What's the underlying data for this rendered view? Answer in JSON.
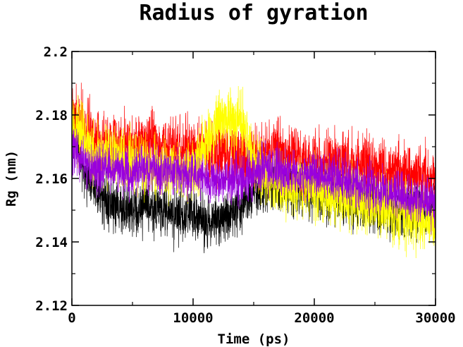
{
  "chart_data": {
    "type": "line",
    "title": "Radius of gyration",
    "xlabel": "Time (ps)",
    "ylabel": "Rg (nm)",
    "xlim": [
      0,
      30000
    ],
    "ylim": [
      2.12,
      2.2
    ],
    "xticks": [
      0,
      10000,
      20000,
      30000
    ],
    "yticks": [
      2.12,
      2.14,
      2.16,
      2.18,
      2.2
    ],
    "xtick_labels": [
      "0",
      "10000",
      "20000",
      "30000"
    ],
    "ytick_labels": [
      "2.12",
      "2.14",
      "2.16",
      "2.18",
      "2.2"
    ],
    "grid": false,
    "legend": false,
    "series": [
      {
        "color": "#000000",
        "x": [
          0,
          1000,
          2000,
          3000,
          4000,
          5000,
          6000,
          7000,
          8000,
          9000,
          10000,
          11000,
          12000,
          13000,
          14000,
          15000,
          16000,
          17000,
          18000,
          19000,
          20000,
          21000,
          22000,
          23000,
          24000,
          25000,
          26000,
          27000,
          28000,
          29000,
          30000
        ],
        "y": [
          2.176,
          2.163,
          2.156,
          2.152,
          2.151,
          2.15,
          2.151,
          2.15,
          2.149,
          2.148,
          2.149,
          2.146,
          2.148,
          2.149,
          2.152,
          2.155,
          2.158,
          2.158,
          2.157,
          2.156,
          2.156,
          2.155,
          2.154,
          2.153,
          2.152,
          2.152,
          2.151,
          2.15,
          2.15,
          2.15,
          2.151
        ],
        "noise": 0.007
      },
      {
        "color": "#ff0000",
        "x": [
          0,
          1000,
          2000,
          3000,
          4000,
          5000,
          6000,
          7000,
          8000,
          9000,
          10000,
          11000,
          12000,
          13000,
          14000,
          15000,
          16000,
          17000,
          18000,
          19000,
          20000,
          21000,
          22000,
          23000,
          24000,
          25000,
          26000,
          27000,
          28000,
          29000,
          30000
        ],
        "y": [
          2.18,
          2.176,
          2.172,
          2.171,
          2.17,
          2.171,
          2.172,
          2.171,
          2.17,
          2.169,
          2.169,
          2.168,
          2.168,
          2.167,
          2.167,
          2.166,
          2.168,
          2.168,
          2.167,
          2.166,
          2.165,
          2.165,
          2.165,
          2.165,
          2.164,
          2.163,
          2.162,
          2.162,
          2.161,
          2.16,
          2.16
        ],
        "noise": 0.008
      },
      {
        "color": "#ffff00",
        "x": [
          0,
          1000,
          2000,
          3000,
          4000,
          5000,
          6000,
          7000,
          8000,
          9000,
          10000,
          11000,
          12000,
          13000,
          14000,
          15000,
          16000,
          17000,
          18000,
          19000,
          20000,
          21000,
          22000,
          23000,
          24000,
          25000,
          26000,
          27000,
          28000,
          29000,
          30000
        ],
        "y": [
          2.178,
          2.172,
          2.168,
          2.168,
          2.166,
          2.165,
          2.164,
          2.163,
          2.163,
          2.162,
          2.163,
          2.17,
          2.178,
          2.18,
          2.178,
          2.165,
          2.16,
          2.158,
          2.157,
          2.158,
          2.156,
          2.156,
          2.154,
          2.153,
          2.152,
          2.151,
          2.15,
          2.149,
          2.148,
          2.147,
          2.146
        ],
        "noise": 0.008
      },
      {
        "color": "#9900dd",
        "x": [
          0,
          1000,
          2000,
          3000,
          4000,
          5000,
          6000,
          7000,
          8000,
          9000,
          10000,
          11000,
          12000,
          13000,
          14000,
          15000,
          16000,
          17000,
          18000,
          19000,
          20000,
          21000,
          22000,
          23000,
          24000,
          25000,
          26000,
          27000,
          28000,
          29000,
          30000
        ],
        "y": [
          2.17,
          2.165,
          2.163,
          2.163,
          2.162,
          2.162,
          2.163,
          2.163,
          2.162,
          2.161,
          2.161,
          2.16,
          2.16,
          2.159,
          2.16,
          2.162,
          2.163,
          2.163,
          2.162,
          2.161,
          2.161,
          2.161,
          2.16,
          2.159,
          2.158,
          2.157,
          2.156,
          2.155,
          2.154,
          2.153,
          2.152
        ],
        "noise": 0.006
      }
    ]
  }
}
